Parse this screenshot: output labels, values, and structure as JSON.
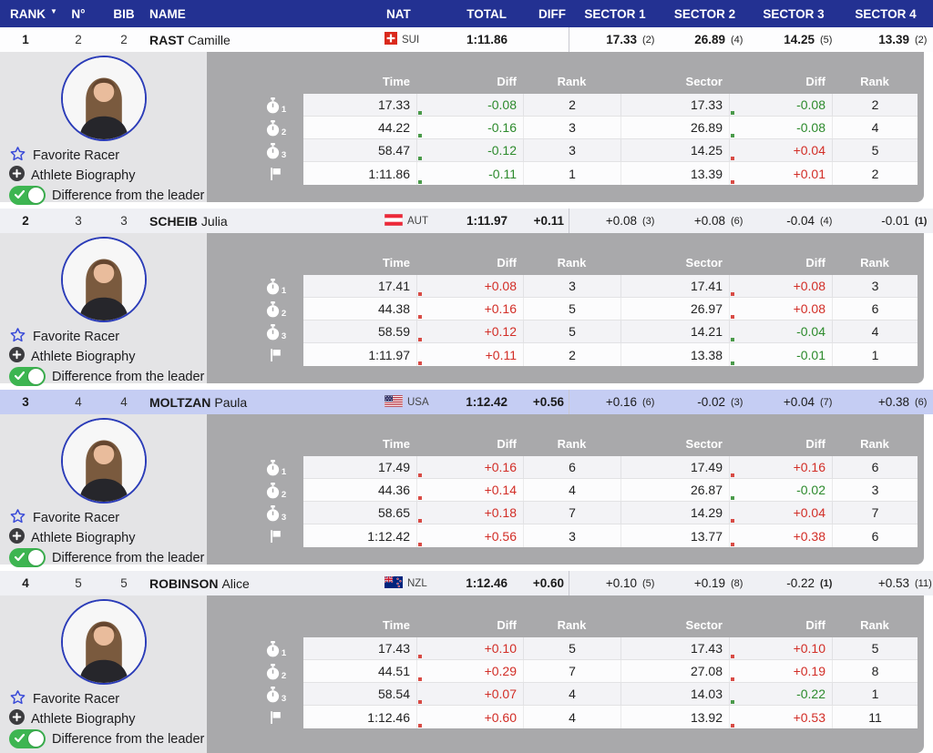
{
  "colors": {
    "header_bg": "#233192",
    "positive_diff": "#d22d26",
    "negative_diff": "#2c8a2c",
    "highlight_row": "#c5cdf3",
    "leader_row": "#fdfdfe",
    "normal_row": "#eff0f4"
  },
  "table_header": {
    "rank": "RANK",
    "sort_icon": "▼",
    "number": "N°",
    "bib": "BIB",
    "name": "NAME",
    "nat": "NAT",
    "total": "TOTAL",
    "diff": "DIFF",
    "sector1": "SECTOR 1",
    "sector2": "SECTOR 2",
    "sector3": "SECTOR 3",
    "sector4": "SECTOR 4"
  },
  "detail_header": {
    "time": "Time",
    "diff": "Diff",
    "rank": "Rank",
    "sector": "Sector",
    "diff2": "Diff",
    "rank2": "Rank"
  },
  "panel_labels": {
    "favorite": "Favorite Racer",
    "biography": "Athlete Biography",
    "difference": "Difference from the leader"
  },
  "racers": [
    {
      "rank": "1",
      "number": "2",
      "bib": "2",
      "surname": "RAST",
      "firstname": "Camille",
      "nat": "SUI",
      "total": "1:11.86",
      "diff": "",
      "leader": true,
      "highlight": false,
      "sectors": [
        {
          "value": "17.33",
          "rank": "(2)"
        },
        {
          "value": "26.89",
          "rank": "(4)"
        },
        {
          "value": "14.25",
          "rank": "(5)"
        },
        {
          "value": "13.39",
          "rank": "(2)"
        }
      ],
      "splits": [
        {
          "icon": "stopwatch",
          "label": "1",
          "time": "17.33",
          "tdiff": "-0.08",
          "trank": "2",
          "sector": "17.33",
          "sdiff": "-0.08",
          "srank": "2"
        },
        {
          "icon": "stopwatch",
          "label": "2",
          "time": "44.22",
          "tdiff": "-0.16",
          "trank": "3",
          "sector": "26.89",
          "sdiff": "-0.08",
          "srank": "4"
        },
        {
          "icon": "stopwatch",
          "label": "3",
          "time": "58.47",
          "tdiff": "-0.12",
          "trank": "3",
          "sector": "14.25",
          "sdiff": "+0.04",
          "srank": "5"
        },
        {
          "icon": "flag",
          "label": "",
          "time": "1:11.86",
          "tdiff": "-0.11",
          "trank": "1",
          "sector": "13.39",
          "sdiff": "+0.01",
          "srank": "2"
        }
      ]
    },
    {
      "rank": "2",
      "number": "3",
      "bib": "3",
      "surname": "SCHEIB",
      "firstname": "Julia",
      "nat": "AUT",
      "total": "1:11.97",
      "diff": "+0.11",
      "leader": false,
      "highlight": false,
      "sectors": [
        {
          "value": "+0.08",
          "rank": "(3)"
        },
        {
          "value": "+0.08",
          "rank": "(6)"
        },
        {
          "value": "-0.04",
          "rank": "(4)"
        },
        {
          "value": "-0.01",
          "rank": "(1)"
        }
      ],
      "splits": [
        {
          "icon": "stopwatch",
          "label": "1",
          "time": "17.41",
          "tdiff": "+0.08",
          "trank": "3",
          "sector": "17.41",
          "sdiff": "+0.08",
          "srank": "3"
        },
        {
          "icon": "stopwatch",
          "label": "2",
          "time": "44.38",
          "tdiff": "+0.16",
          "trank": "5",
          "sector": "26.97",
          "sdiff": "+0.08",
          "srank": "6"
        },
        {
          "icon": "stopwatch",
          "label": "3",
          "time": "58.59",
          "tdiff": "+0.12",
          "trank": "5",
          "sector": "14.21",
          "sdiff": "-0.04",
          "srank": "4"
        },
        {
          "icon": "flag",
          "label": "",
          "time": "1:11.97",
          "tdiff": "+0.11",
          "trank": "2",
          "sector": "13.38",
          "sdiff": "-0.01",
          "srank": "1"
        }
      ]
    },
    {
      "rank": "3",
      "number": "4",
      "bib": "4",
      "surname": "MOLTZAN",
      "firstname": "Paula",
      "nat": "USA",
      "total": "1:12.42",
      "diff": "+0.56",
      "leader": false,
      "highlight": true,
      "sectors": [
        {
          "value": "+0.16",
          "rank": "(6)"
        },
        {
          "value": "-0.02",
          "rank": "(3)"
        },
        {
          "value": "+0.04",
          "rank": "(7)"
        },
        {
          "value": "+0.38",
          "rank": "(6)"
        }
      ],
      "splits": [
        {
          "icon": "stopwatch",
          "label": "1",
          "time": "17.49",
          "tdiff": "+0.16",
          "trank": "6",
          "sector": "17.49",
          "sdiff": "+0.16",
          "srank": "6"
        },
        {
          "icon": "stopwatch",
          "label": "2",
          "time": "44.36",
          "tdiff": "+0.14",
          "trank": "4",
          "sector": "26.87",
          "sdiff": "-0.02",
          "srank": "3"
        },
        {
          "icon": "stopwatch",
          "label": "3",
          "time": "58.65",
          "tdiff": "+0.18",
          "trank": "7",
          "sector": "14.29",
          "sdiff": "+0.04",
          "srank": "7"
        },
        {
          "icon": "flag",
          "label": "",
          "time": "1:12.42",
          "tdiff": "+0.56",
          "trank": "3",
          "sector": "13.77",
          "sdiff": "+0.38",
          "srank": "6"
        }
      ]
    },
    {
      "rank": "4",
      "number": "5",
      "bib": "5",
      "surname": "ROBINSON",
      "firstname": "Alice",
      "nat": "NZL",
      "total": "1:12.46",
      "diff": "+0.60",
      "leader": false,
      "highlight": false,
      "sectors": [
        {
          "value": "+0.10",
          "rank": "(5)"
        },
        {
          "value": "+0.19",
          "rank": "(8)"
        },
        {
          "value": "-0.22",
          "rank": "(1)"
        },
        {
          "value": "+0.53",
          "rank": "(11)"
        }
      ],
      "splits": [
        {
          "icon": "stopwatch",
          "label": "1",
          "time": "17.43",
          "tdiff": "+0.10",
          "trank": "5",
          "sector": "17.43",
          "sdiff": "+0.10",
          "srank": "5"
        },
        {
          "icon": "stopwatch",
          "label": "2",
          "time": "44.51",
          "tdiff": "+0.29",
          "trank": "7",
          "sector": "27.08",
          "sdiff": "+0.19",
          "srank": "8"
        },
        {
          "icon": "stopwatch",
          "label": "3",
          "time": "58.54",
          "tdiff": "+0.07",
          "trank": "4",
          "sector": "14.03",
          "sdiff": "-0.22",
          "srank": "1"
        },
        {
          "icon": "flag",
          "label": "",
          "time": "1:12.46",
          "tdiff": "+0.60",
          "trank": "4",
          "sector": "13.92",
          "sdiff": "+0.53",
          "srank": "11"
        }
      ]
    }
  ]
}
